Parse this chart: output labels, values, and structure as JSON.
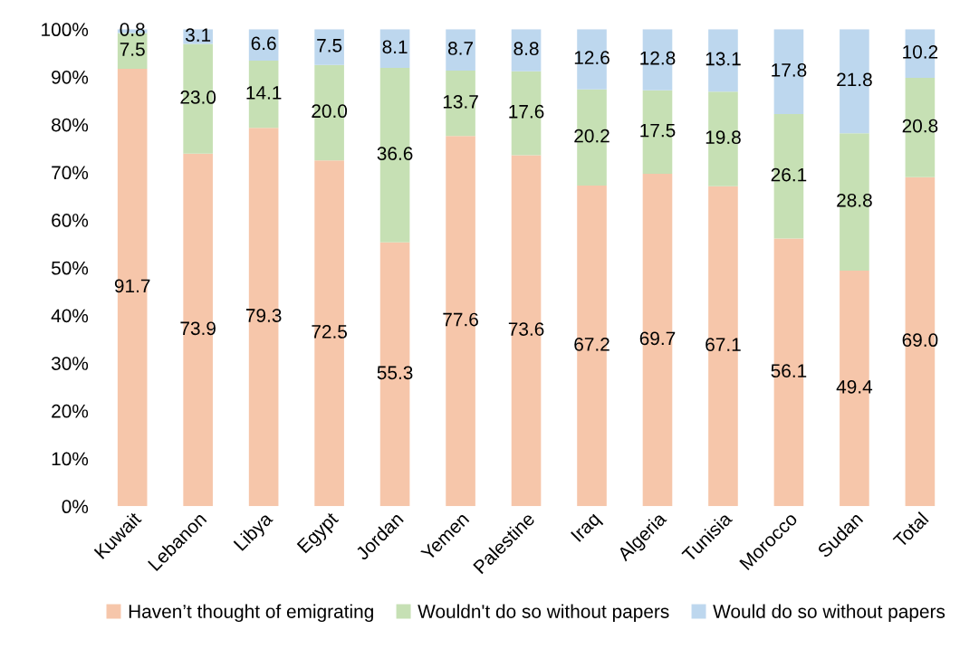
{
  "chart_data": {
    "type": "bar",
    "stacked": true,
    "legend": "bottom",
    "grid": false,
    "categories": [
      "Kuwait",
      "Lebanon",
      "Libya",
      "Egypt",
      "Jordan",
      "Yemen",
      "Palestine",
      "Iraq",
      "Algeria",
      "Tunisia",
      "Morocco",
      "Sudan",
      "Total"
    ],
    "ylim": [
      0,
      100
    ],
    "yticks": [
      {
        "value": 0,
        "label": "0%"
      },
      {
        "value": 10,
        "label": "10%"
      },
      {
        "value": 20,
        "label": "20%"
      },
      {
        "value": 30,
        "label": "30%"
      },
      {
        "value": 40,
        "label": "40%"
      },
      {
        "value": 50,
        "label": "50%"
      },
      {
        "value": 60,
        "label": "60%"
      },
      {
        "value": 70,
        "label": "70%"
      },
      {
        "value": 80,
        "label": "80%"
      },
      {
        "value": 90,
        "label": "90%"
      },
      {
        "value": 100,
        "label": "100%"
      }
    ],
    "series": [
      {
        "name": "Haven’t thought of emigrating",
        "color": "#f6c6aa",
        "values": [
          91.7,
          73.9,
          79.3,
          72.5,
          55.3,
          77.6,
          73.6,
          67.2,
          69.7,
          67.1,
          56.1,
          49.4,
          69.0
        ],
        "value_labels": [
          "91.7",
          "73.9",
          "79.3",
          "72.5",
          "55.3",
          "77.6",
          "73.6",
          "67.2",
          "69.7",
          "67.1",
          "56.1",
          "49.4",
          "69.0"
        ]
      },
      {
        "name": "Wouldn't do so without papers",
        "color": "#c6e0b4",
        "values": [
          7.5,
          23.0,
          14.1,
          20.0,
          36.6,
          13.7,
          17.6,
          20.2,
          17.5,
          19.8,
          26.1,
          28.8,
          20.8
        ],
        "value_labels": [
          "7.5",
          "23.0",
          "14.1",
          "20.0",
          "36.6",
          "13.7",
          "17.6",
          "20.2",
          "17.5",
          "19.8",
          "26.1",
          "28.8",
          "20.8"
        ]
      },
      {
        "name": "Would do so without papers",
        "color": "#bdd7ee",
        "values": [
          0.8,
          3.1,
          6.6,
          7.5,
          8.1,
          8.7,
          8.8,
          12.6,
          12.8,
          13.1,
          17.8,
          21.8,
          10.2
        ],
        "value_labels": [
          "0.8",
          "3.1",
          "6.6",
          "7.5",
          "8.1",
          "8.7",
          "8.8",
          "12.6",
          "12.8",
          "13.1",
          "17.8",
          "21.8",
          "10.2"
        ]
      }
    ]
  }
}
